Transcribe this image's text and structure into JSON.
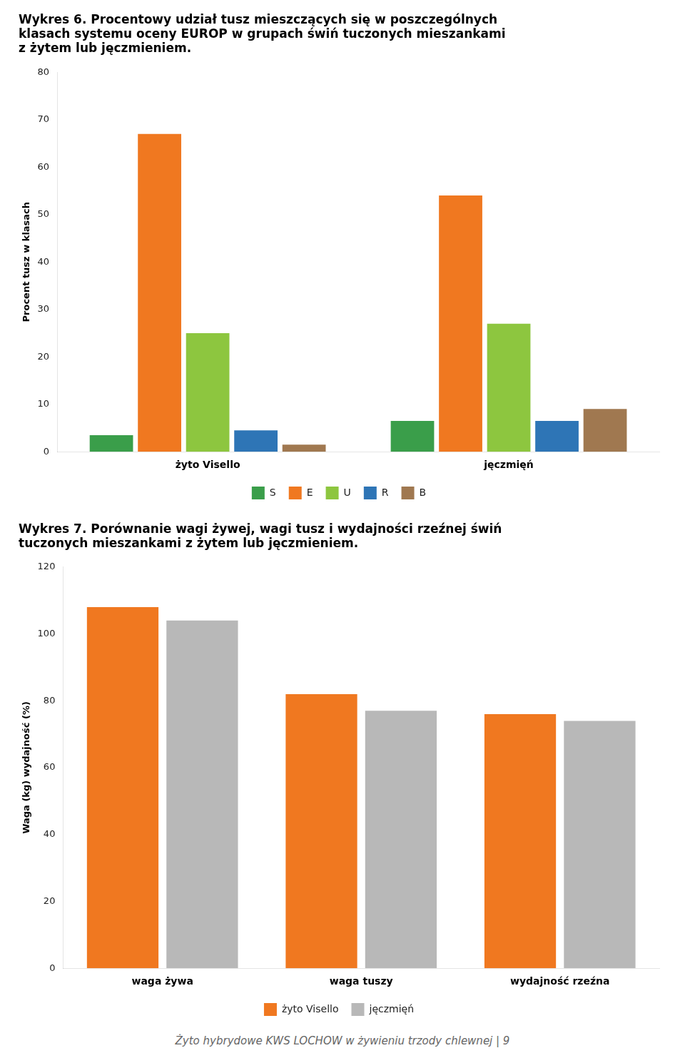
{
  "chart_data": [
    {
      "type": "bar",
      "title": "Wykres 6. Procentowy udział tusz mieszczących się w poszczególnych\nklasach systemu oceny EUROP w grupach świń tuczonych mieszankami\nz żytem lub jęczmieniem.",
      "ylabel": "Procent tusz w klasach",
      "categories": [
        "żyto Visello",
        "jęczmięń"
      ],
      "series": [
        {
          "name": "S",
          "color": "#3a9e4a",
          "values": [
            3.5,
            6.5
          ]
        },
        {
          "name": "E",
          "color": "#f07820",
          "values": [
            67.0,
            54.0
          ]
        },
        {
          "name": "U",
          "color": "#8dc63f",
          "values": [
            25.0,
            27.0
          ]
        },
        {
          "name": "R",
          "color": "#2e75b6",
          "values": [
            4.5,
            6.5
          ]
        },
        {
          "name": "B",
          "color": "#a07850",
          "values": [
            1.5,
            9.0
          ]
        }
      ],
      "ylim": [
        0,
        80
      ],
      "yticks": [
        0,
        10,
        20,
        30,
        40,
        50,
        60,
        70,
        80
      ],
      "grid": false,
      "legend": "bottom"
    },
    {
      "type": "bar",
      "title": "Wykres 7. Porównanie wagi żywej, wagi tusz i wydajności rzeźnej świń\ntuczonych mieszankami z żytem lub jęczmieniem.",
      "ylabel": "Waga (kg) wydajność (%)",
      "categories": [
        "waga żywa",
        "waga tuszy",
        "wydajność rzeźna"
      ],
      "series": [
        {
          "name": "żyto Visello",
          "color": "#f07820",
          "values": [
            108.0,
            82.0,
            76.0
          ]
        },
        {
          "name": "jęczmięń",
          "color": "#b8b8b8",
          "values": [
            104.0,
            77.0,
            74.0
          ]
        }
      ],
      "ylim": [
        0,
        120
      ],
      "yticks": [
        0,
        20,
        40,
        60,
        80,
        100,
        120
      ],
      "grid": false,
      "legend": "bottom"
    }
  ],
  "footer": "Żyto hybrydowe KWS LOCHOW w żywieniu trzody chlewnej | 9"
}
